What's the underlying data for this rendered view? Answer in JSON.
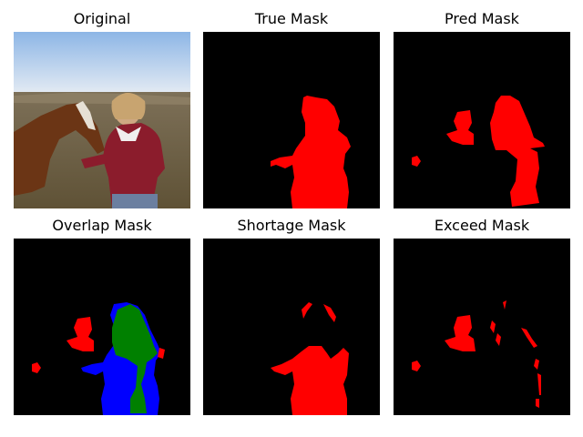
{
  "panels": [
    {
      "title": "Original"
    },
    {
      "title": "True Mask"
    },
    {
      "title": "Pred Mask"
    },
    {
      "title": "Overlap Mask"
    },
    {
      "title": "Shortage Mask"
    },
    {
      "title": "Exceed Mask"
    }
  ],
  "colors": {
    "background": "#000000",
    "mask_red": "#ff0000",
    "overlap_green": "#008000",
    "overlap_blue": "#0000ff"
  }
}
